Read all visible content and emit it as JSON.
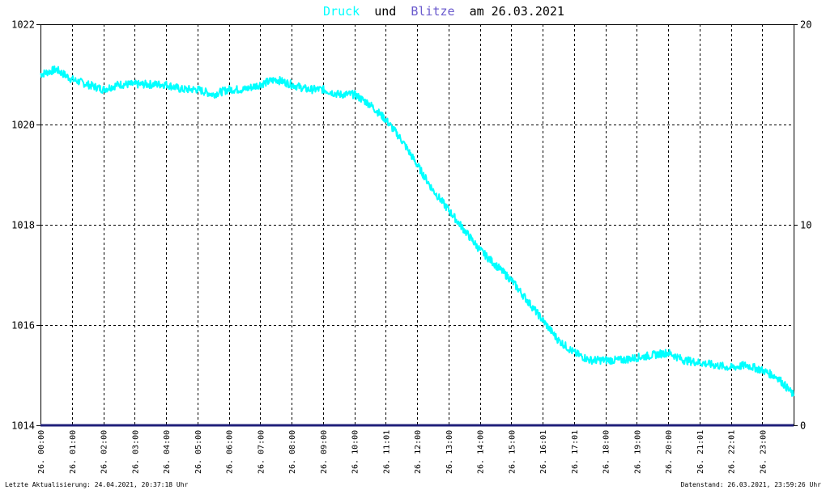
{
  "title": {
    "word1": "Druck",
    "word2": "und",
    "word3": "Blitze",
    "word4": "am 26.03.2021"
  },
  "footer": {
    "left": "Letzte Aktualisierung: 24.04.2021, 20:37:18 Uhr",
    "right": "Datenstand: 26.03.2021, 23:59:26 Uhr"
  },
  "colors": {
    "background": "#ffffff",
    "pressure": "#00ffff",
    "lightning": "#1f1f7a",
    "grid": "#000000",
    "title_text": "#000000"
  },
  "chart_data": {
    "type": "line",
    "title": "Druck und Blitze am 26.03.2021",
    "grid": true,
    "x_ticks": [
      "26. 00:00",
      "26. 01:00",
      "26. 02:00",
      "26. 03:00",
      "26. 04:00",
      "26. 05:00",
      "26. 06:00",
      "26. 07:00",
      "26. 08:00",
      "26. 09:00",
      "26. 10:00",
      "26. 11:01",
      "26. 12:00",
      "26. 13:00",
      "26. 14:00",
      "26. 15:00",
      "26. 16:01",
      "26. 17:01",
      "26. 18:00",
      "26. 19:00",
      "26. 20:00",
      "26. 21:01",
      "26. 22:01",
      "26. 23:00"
    ],
    "x_range_hours": [
      0,
      24
    ],
    "y_left": {
      "range": [
        1014,
        1022
      ],
      "ticks": [
        "1014",
        "1016",
        "1018",
        "1020",
        "1022"
      ]
    },
    "y_right": {
      "range": [
        0,
        20
      ],
      "ticks": [
        "0",
        "10",
        "20"
      ]
    },
    "series": [
      {
        "name": "Druck",
        "axis": "left",
        "x_hours": [
          0,
          0.5,
          1,
          1.5,
          2,
          2.5,
          3,
          3.5,
          4,
          4.5,
          5,
          5.5,
          6,
          6.5,
          7,
          7.5,
          8,
          8.5,
          9,
          9.5,
          10,
          10.5,
          11,
          11.5,
          12,
          12.5,
          13,
          13.5,
          14,
          14.5,
          15,
          15.5,
          16,
          16.5,
          17,
          17.5,
          18,
          18.5,
          19,
          19.5,
          20,
          20.5,
          21,
          21.5,
          22,
          22.5,
          23,
          23.5,
          24
        ],
        "values": [
          1021.0,
          1021.1,
          1020.9,
          1020.8,
          1020.7,
          1020.8,
          1020.8,
          1020.8,
          1020.8,
          1020.7,
          1020.7,
          1020.6,
          1020.7,
          1020.7,
          1020.8,
          1020.9,
          1020.8,
          1020.7,
          1020.7,
          1020.6,
          1020.6,
          1020.4,
          1020.1,
          1019.7,
          1019.2,
          1018.7,
          1018.3,
          1017.9,
          1017.5,
          1017.2,
          1016.9,
          1016.5,
          1016.1,
          1015.7,
          1015.45,
          1015.3,
          1015.3,
          1015.3,
          1015.35,
          1015.4,
          1015.45,
          1015.3,
          1015.25,
          1015.2,
          1015.15,
          1015.2,
          1015.1,
          1014.95,
          1014.6
        ]
      },
      {
        "name": "Blitze",
        "axis": "right",
        "x_hours": [
          0,
          24
        ],
        "values": [
          0,
          0
        ]
      }
    ]
  }
}
